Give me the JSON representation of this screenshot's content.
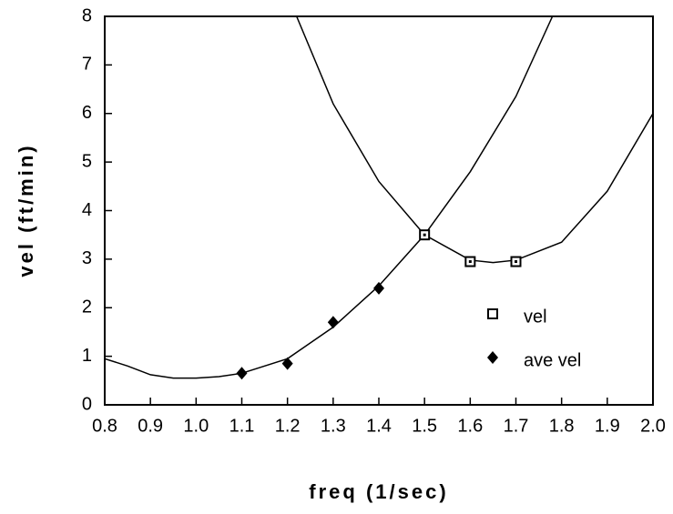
{
  "chart_data": {
    "type": "scatter",
    "xlabel": "freq (1/sec)",
    "ylabel": "vel (ft/min)",
    "xlim": [
      0.8,
      2.0
    ],
    "ylim": [
      0,
      8
    ],
    "xticks": [
      0.8,
      0.9,
      {
        "value": 1,
        "label": "1.0"
      },
      1.1,
      1.2,
      1.3,
      1.4,
      1.5,
      1.6,
      1.7,
      1.8,
      1.9,
      {
        "value": 2,
        "label": "2.0"
      }
    ],
    "yticks": [
      0,
      1,
      2,
      3,
      4,
      5,
      6,
      7,
      8
    ],
    "series": [
      {
        "name": "vel",
        "marker": "square",
        "color": "#000000",
        "x": [
          1.5,
          1.6,
          1.7
        ],
        "values": [
          3.5,
          2.95,
          2.95
        ]
      },
      {
        "name": "ave vel",
        "marker": "diamond",
        "color": "#000000",
        "x": [
          1.1,
          1.2,
          1.3,
          1.4
        ],
        "values": [
          0.65,
          0.85,
          1.7,
          2.4
        ]
      }
    ],
    "curves": [
      {
        "color": "#000000",
        "x": [
          0.8,
          0.85,
          0.9,
          0.95,
          1.0,
          1.05,
          1.1,
          1.2,
          1.3,
          1.4,
          1.5,
          1.6,
          1.7,
          1.78
        ],
        "values": [
          0.95,
          0.8,
          0.62,
          0.55,
          0.55,
          0.58,
          0.65,
          0.95,
          1.6,
          2.45,
          3.5,
          4.8,
          6.35,
          8
        ]
      },
      {
        "color": "#000000",
        "x": [
          1.22,
          1.3,
          1.4,
          1.5,
          1.6,
          1.65,
          1.7,
          1.8,
          1.9,
          2.0
        ],
        "values": [
          8,
          6.2,
          4.6,
          3.5,
          2.98,
          2.93,
          2.98,
          3.35,
          4.4,
          6.0
        ]
      }
    ],
    "legend": "inside-lower-right"
  }
}
